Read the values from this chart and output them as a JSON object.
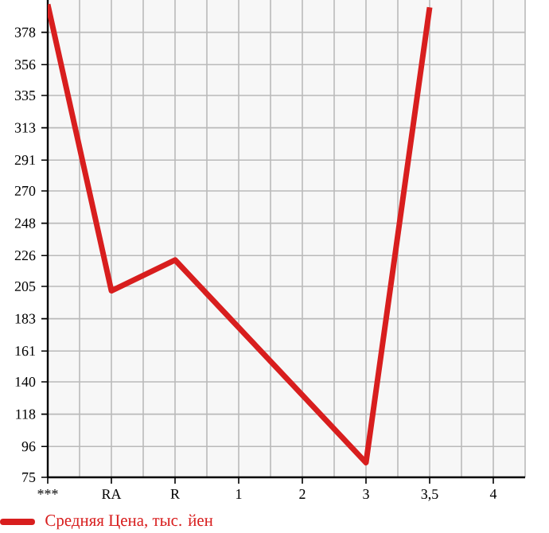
{
  "chart_data": {
    "type": "line",
    "categories": [
      "***",
      "RA",
      "R",
      "1",
      "2",
      "3",
      "3,5",
      "4"
    ],
    "series": [
      {
        "name": "Средняя Цена, тыс. йен",
        "color": "#d81e1e",
        "values": [
          397,
          202,
          223,
          null,
          null,
          85,
          395,
          null
        ]
      }
    ],
    "ylim": [
      75,
      400
    ],
    "yticks": [
      75,
      96,
      118,
      140,
      161,
      183,
      205,
      226,
      248,
      270,
      291,
      313,
      335,
      356,
      378
    ],
    "grid": true,
    "legend": "bottom left",
    "marker": "none",
    "line_style": "solid"
  }
}
